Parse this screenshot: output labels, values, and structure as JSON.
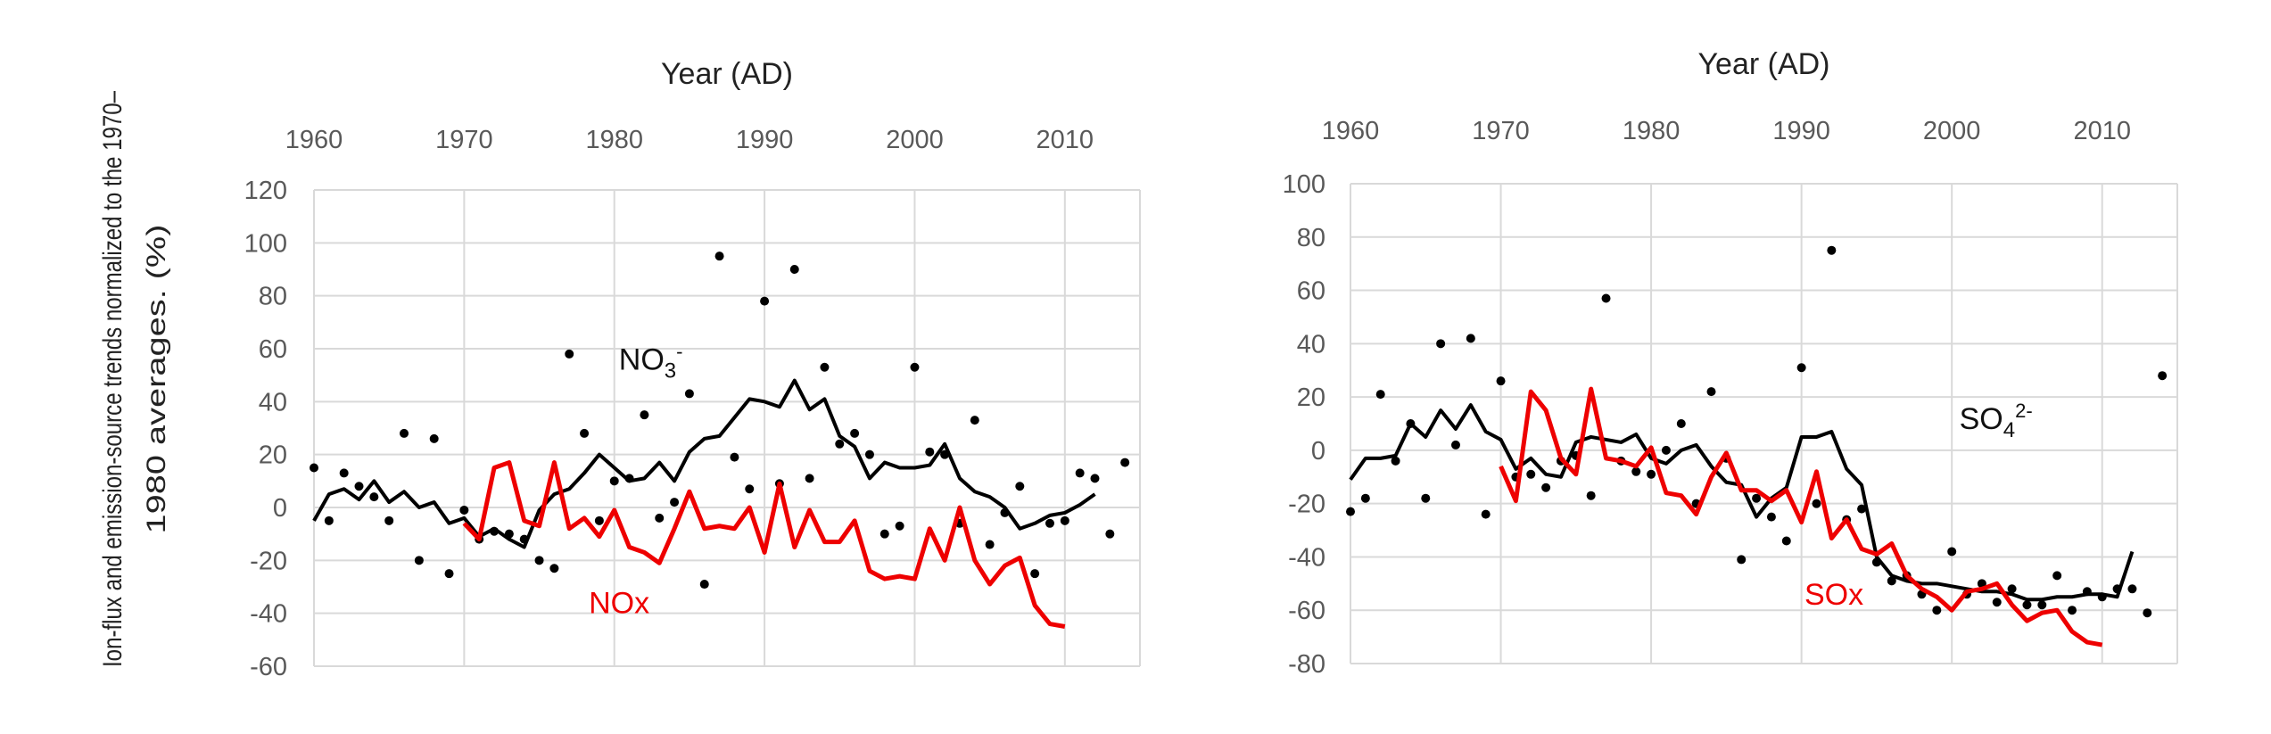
{
  "chart_data": [
    {
      "type": "line",
      "title": "Year (AD)",
      "xlabel": "Year (AD)",
      "ylabel_lines": [
        "Ion-flux and emission-source trends normalized to the 1970–",
        "1980 averages. (%)"
      ],
      "xlim": [
        1960,
        2015
      ],
      "ylim": [
        -60,
        120
      ],
      "xticks": [
        1960,
        1970,
        1980,
        1990,
        2000,
        2010
      ],
      "yticks": [
        -60,
        -40,
        -20,
        0,
        20,
        40,
        60,
        80,
        100,
        120
      ],
      "grid": true,
      "series": [
        {
          "name": "NO3- annual",
          "style": "points",
          "color": "#000000",
          "x": [
            1960,
            1961,
            1962,
            1963,
            1964,
            1965,
            1966,
            1967,
            1968,
            1969,
            1970,
            1971,
            1972,
            1973,
            1974,
            1975,
            1976,
            1977,
            1978,
            1979,
            1980,
            1981,
            1982,
            1983,
            1984,
            1985,
            1986,
            1987,
            1988,
            1989,
            1990,
            1991,
            1992,
            1993,
            1994,
            1995,
            1996,
            1997,
            1998,
            1999,
            2000,
            2001,
            2002,
            2003,
            2004,
            2005,
            2006,
            2007,
            2008,
            2009,
            2010,
            2011,
            2012,
            2013,
            2014
          ],
          "values": [
            15,
            -5,
            13,
            8,
            4,
            -5,
            28,
            -20,
            26,
            -25,
            -1,
            -12,
            -9,
            -10,
            -12,
            -20,
            -23,
            58,
            28,
            -5,
            10,
            11,
            35,
            -4,
            2,
            43,
            -29,
            95,
            19,
            7,
            78,
            9,
            90,
            11,
            53,
            24,
            28,
            20,
            -10,
            -7,
            53,
            21,
            20,
            -6,
            33,
            -14,
            -2,
            8,
            -25,
            -6,
            -5,
            13,
            11,
            -10,
            17
          ]
        },
        {
          "name": "NO3-",
          "style": "line",
          "color": "#000000",
          "label": {
            "base": "NO",
            "sub": "3",
            "sup": "-"
          },
          "label_at": [
            1980.3,
            52
          ],
          "x": [
            1960,
            1961,
            1962,
            1963,
            1964,
            1965,
            1966,
            1967,
            1968,
            1969,
            1970,
            1971,
            1972,
            1973,
            1974,
            1975,
            1976,
            1977,
            1978,
            1979,
            1980,
            1981,
            1982,
            1983,
            1984,
            1985,
            1986,
            1987,
            1988,
            1989,
            1990,
            1991,
            1992,
            1993,
            1994,
            1995,
            1996,
            1997,
            1998,
            1999,
            2000,
            2001,
            2002,
            2003,
            2004,
            2005,
            2006,
            2007,
            2008,
            2009,
            2010,
            2011,
            2012
          ],
          "values": [
            -5,
            5,
            7,
            3,
            10,
            2,
            6,
            0,
            2,
            -6,
            -4,
            -11,
            -8,
            -12,
            -15,
            -1,
            5,
            7,
            13,
            20,
            15,
            10,
            11,
            17,
            10,
            21,
            26,
            27,
            34,
            41,
            40,
            38,
            48,
            37,
            41,
            27,
            23,
            11,
            17,
            15,
            15,
            16,
            24,
            11,
            6,
            4,
            0,
            -8,
            -6,
            -3,
            -2,
            1,
            5
          ]
        },
        {
          "name": "NOx",
          "style": "line",
          "color": "#ee0000",
          "label": {
            "base": "NOx"
          },
          "label_at": [
            1978.3,
            -40
          ],
          "x": [
            1970,
            1971,
            1972,
            1973,
            1974,
            1975,
            1976,
            1977,
            1978,
            1979,
            1980,
            1981,
            1982,
            1983,
            1984,
            1985,
            1986,
            1987,
            1988,
            1989,
            1990,
            1991,
            1992,
            1993,
            1994,
            1995,
            1996,
            1997,
            1998,
            1999,
            2000,
            2001,
            2002,
            2003,
            2004,
            2005,
            2006,
            2007,
            2008,
            2009,
            2010
          ],
          "values": [
            -6,
            -12,
            15,
            17,
            -5,
            -7,
            17,
            -8,
            -4,
            -11,
            -1,
            -15,
            -17,
            -21,
            -8,
            6,
            -8,
            -7,
            -8,
            0,
            -17,
            9,
            -15,
            -1,
            -13,
            -13,
            -5,
            -24,
            -27,
            -26,
            -27,
            -8,
            -20,
            0,
            -20,
            -29,
            -22,
            -19,
            -37,
            -44,
            -45
          ]
        }
      ]
    },
    {
      "type": "line",
      "title": "Year (AD)",
      "xlabel": "Year (AD)",
      "ylabel_lines": [],
      "xlim": [
        1960,
        2015
      ],
      "ylim": [
        -80,
        100
      ],
      "xticks": [
        1960,
        1970,
        1980,
        1990,
        2000,
        2010
      ],
      "yticks": [
        -80,
        -60,
        -40,
        -20,
        0,
        20,
        40,
        60,
        80,
        100
      ],
      "grid": true,
      "series": [
        {
          "name": "SO42- annual",
          "style": "points",
          "color": "#000000",
          "x": [
            1960,
            1961,
            1962,
            1963,
            1964,
            1965,
            1966,
            1967,
            1968,
            1969,
            1970,
            1971,
            1972,
            1973,
            1974,
            1975,
            1976,
            1977,
            1978,
            1979,
            1980,
            1981,
            1982,
            1983,
            1984,
            1985,
            1986,
            1987,
            1988,
            1989,
            1990,
            1991,
            1992,
            1993,
            1994,
            1995,
            1996,
            1997,
            1998,
            1999,
            2000,
            2001,
            2002,
            2003,
            2004,
            2005,
            2006,
            2007,
            2008,
            2009,
            2010,
            2011,
            2012,
            2013,
            2014
          ],
          "values": [
            -23,
            -18,
            21,
            -4,
            10,
            -18,
            40,
            2,
            42,
            -24,
            26,
            -10,
            -9,
            -14,
            -4,
            -2,
            -17,
            57,
            -4,
            -8,
            -9,
            0,
            10,
            -20,
            22,
            -3,
            -41,
            -18,
            -25,
            -34,
            31,
            -20,
            75,
            -26,
            -22,
            -42,
            -49,
            -47,
            -54,
            -60,
            -38,
            -54,
            -50,
            -57,
            -52,
            -58,
            -58,
            -47,
            -60,
            -53,
            -55,
            -52,
            -52,
            -61,
            28
          ]
        },
        {
          "name": "SO42-",
          "style": "line",
          "color": "#000000",
          "label": {
            "base": "SO",
            "sub": "4",
            "sup": "2-"
          },
          "label_at": [
            2000.5,
            8
          ],
          "x": [
            1960,
            1961,
            1962,
            1963,
            1964,
            1965,
            1966,
            1967,
            1968,
            1969,
            1970,
            1971,
            1972,
            1973,
            1974,
            1975,
            1976,
            1977,
            1978,
            1979,
            1980,
            1981,
            1982,
            1983,
            1984,
            1985,
            1986,
            1987,
            1988,
            1989,
            1990,
            1991,
            1992,
            1993,
            1994,
            1995,
            1996,
            1997,
            1998,
            1999,
            2000,
            2001,
            2002,
            2003,
            2004,
            2005,
            2006,
            2007,
            2008,
            2009,
            2010,
            2011,
            2012
          ],
          "values": [
            -11,
            -3,
            -3,
            -2,
            10,
            5,
            15,
            8,
            17,
            7,
            4,
            -7,
            -3,
            -9,
            -10,
            3,
            5,
            4,
            3,
            6,
            -3,
            -5,
            0,
            2,
            -6,
            -12,
            -13,
            -25,
            -18,
            -14,
            5,
            5,
            7,
            -7,
            -13,
            -40,
            -47,
            -49,
            -50,
            -50,
            -51,
            -52,
            -53,
            -53,
            -54,
            -56,
            -56,
            -55,
            -55,
            -54,
            -54,
            -55,
            -38
          ]
        },
        {
          "name": "SOx",
          "style": "line",
          "color": "#ee0000",
          "label": {
            "base": "SOx"
          },
          "label_at": [
            1990.2,
            -58
          ],
          "x": [
            1970,
            1971,
            1972,
            1973,
            1974,
            1975,
            1976,
            1977,
            1978,
            1979,
            1980,
            1981,
            1982,
            1983,
            1984,
            1985,
            1986,
            1987,
            1988,
            1989,
            1990,
            1991,
            1992,
            1993,
            1994,
            1995,
            1996,
            1997,
            1998,
            1999,
            2000,
            2001,
            2002,
            2003,
            2004,
            2005,
            2006,
            2007,
            2008,
            2009,
            2010
          ],
          "values": [
            -6,
            -19,
            22,
            15,
            -3,
            -9,
            23,
            -3,
            -4,
            -6,
            1,
            -16,
            -17,
            -24,
            -10,
            -1,
            -15,
            -15,
            -19,
            -15,
            -27,
            -8,
            -33,
            -26,
            -37,
            -39,
            -35,
            -47,
            -52,
            -55,
            -60,
            -53,
            -52,
            -50,
            -58,
            -64,
            -61,
            -60,
            -68,
            -72,
            -73
          ]
        }
      ]
    }
  ]
}
